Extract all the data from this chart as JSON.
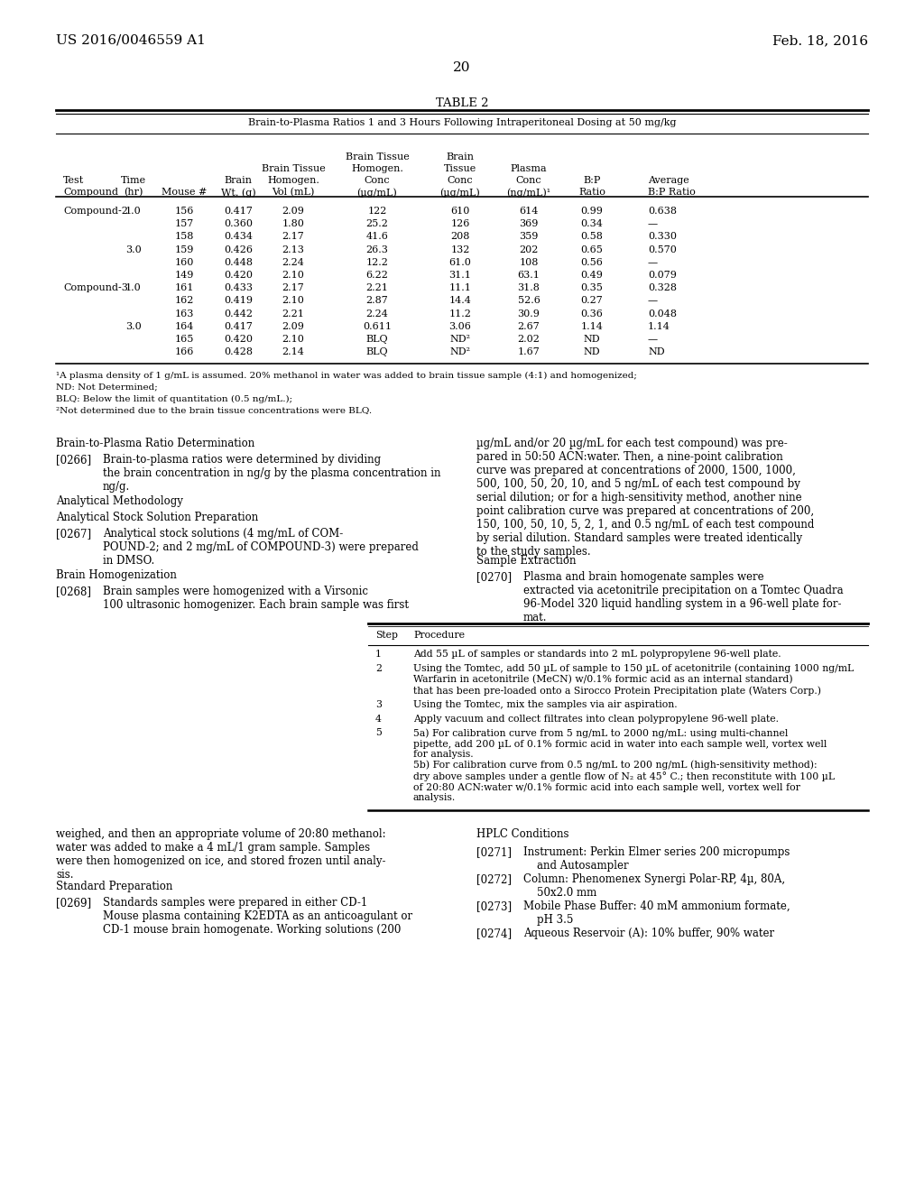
{
  "page_num": "20",
  "header_left": "US 2016/0046559 A1",
  "header_right": "Feb. 18, 2016",
  "table_title": "TABLE 2",
  "table_subtitle": "Brain-to-Plasma Ratios 1 and 3 Hours Following Intraperitoneal Dosing at 50 mg/kg",
  "table_data": [
    [
      "Compound-2",
      "1.0",
      "156",
      "0.417",
      "2.09",
      "122",
      "610",
      "614",
      "0.99",
      "0.638"
    ],
    [
      "",
      "",
      "157",
      "0.360",
      "1.80",
      "25.2",
      "126",
      "369",
      "0.34",
      "—"
    ],
    [
      "",
      "",
      "158",
      "0.434",
      "2.17",
      "41.6",
      "208",
      "359",
      "0.58",
      "0.330"
    ],
    [
      "",
      "3.0",
      "159",
      "0.426",
      "2.13",
      "26.3",
      "132",
      "202",
      "0.65",
      "0.570"
    ],
    [
      "",
      "",
      "160",
      "0.448",
      "2.24",
      "12.2",
      "61.0",
      "108",
      "0.56",
      "—"
    ],
    [
      "",
      "",
      "149",
      "0.420",
      "2.10",
      "6.22",
      "31.1",
      "63.1",
      "0.49",
      "0.079"
    ],
    [
      "Compound-3",
      "1.0",
      "161",
      "0.433",
      "2.17",
      "2.21",
      "11.1",
      "31.8",
      "0.35",
      "0.328"
    ],
    [
      "",
      "",
      "162",
      "0.419",
      "2.10",
      "2.87",
      "14.4",
      "52.6",
      "0.27",
      "—"
    ],
    [
      "",
      "",
      "163",
      "0.442",
      "2.21",
      "2.24",
      "11.2",
      "30.9",
      "0.36",
      "0.048"
    ],
    [
      "",
      "3.0",
      "164",
      "0.417",
      "2.09",
      "0.611",
      "3.06",
      "2.67",
      "1.14",
      "1.14"
    ],
    [
      "",
      "",
      "165",
      "0.420",
      "2.10",
      "BLQ",
      "ND²",
      "2.02",
      "ND",
      "—"
    ],
    [
      "",
      "",
      "166",
      "0.428",
      "2.14",
      "BLQ",
      "ND²",
      "1.67",
      "ND",
      "ND"
    ]
  ],
  "footnotes": [
    "¹A plasma density of 1 g/mL is assumed. 20% methanol in water was added to brain tissue sample (4:1) and homogenized;",
    "ND: Not Determined;",
    "BLQ: Below the limit of quantitation (0.5 ng/mL.);",
    "²Not determined due to the brain tissue concentrations were BLQ."
  ],
  "bg_color": "#ffffff",
  "text_color": "#000000"
}
